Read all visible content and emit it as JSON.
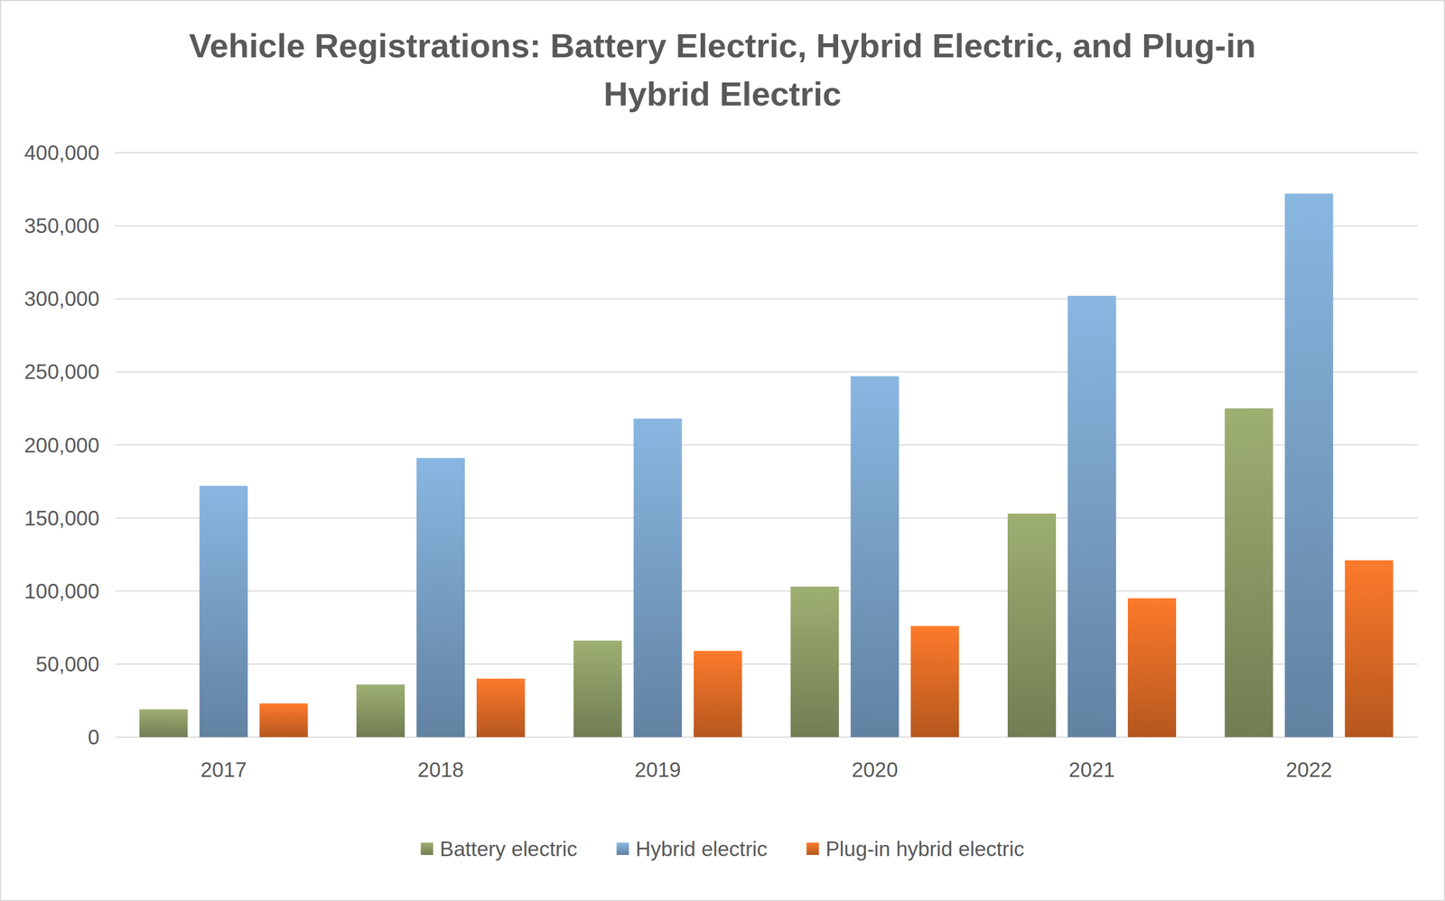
{
  "chart_data": {
    "type": "bar",
    "title": "Vehicle Registrations: Battery Electric, Hybrid Electric, and Plug-in Hybrid Electric",
    "categories": [
      "2017",
      "2018",
      "2019",
      "2020",
      "2021",
      "2022"
    ],
    "series": [
      {
        "name": "Battery electric",
        "color": "#8d9c66",
        "values": [
          19000,
          36000,
          66000,
          103000,
          153000,
          225000
        ]
      },
      {
        "name": "Hybrid electric",
        "color": "#7aa3c9",
        "values": [
          172000,
          191000,
          218000,
          247000,
          302000,
          372000
        ]
      },
      {
        "name": "Plug-in hybrid electric",
        "color": "#e26d26",
        "values": [
          23000,
          40000,
          59000,
          76000,
          95000,
          121000
        ]
      }
    ],
    "ylim": [
      0,
      400000
    ],
    "yticks": [
      0,
      {
        "value": 50000,
        "label": "50,000"
      },
      {
        "value": 100000,
        "label": "100,000"
      },
      {
        "value": 150000,
        "label": "150,000"
      },
      {
        "value": 200000,
        "label": "200,000"
      },
      {
        "value": 250000,
        "label": "250,000"
      },
      {
        "value": 300000,
        "label": "300,000"
      },
      {
        "value": 350000,
        "label": "350,000"
      },
      {
        "value": 400000,
        "label": "400,000"
      }
    ],
    "grid": true,
    "legend": "bottom"
  }
}
